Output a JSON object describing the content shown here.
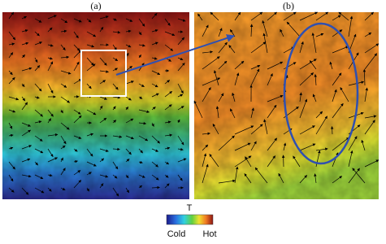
{
  "panels": [
    {
      "label": "(a)"
    },
    {
      "label": "(b)"
    }
  ],
  "colorbar": {
    "title": "T",
    "low_label": "Cold",
    "high_label": "Hot"
  }
}
